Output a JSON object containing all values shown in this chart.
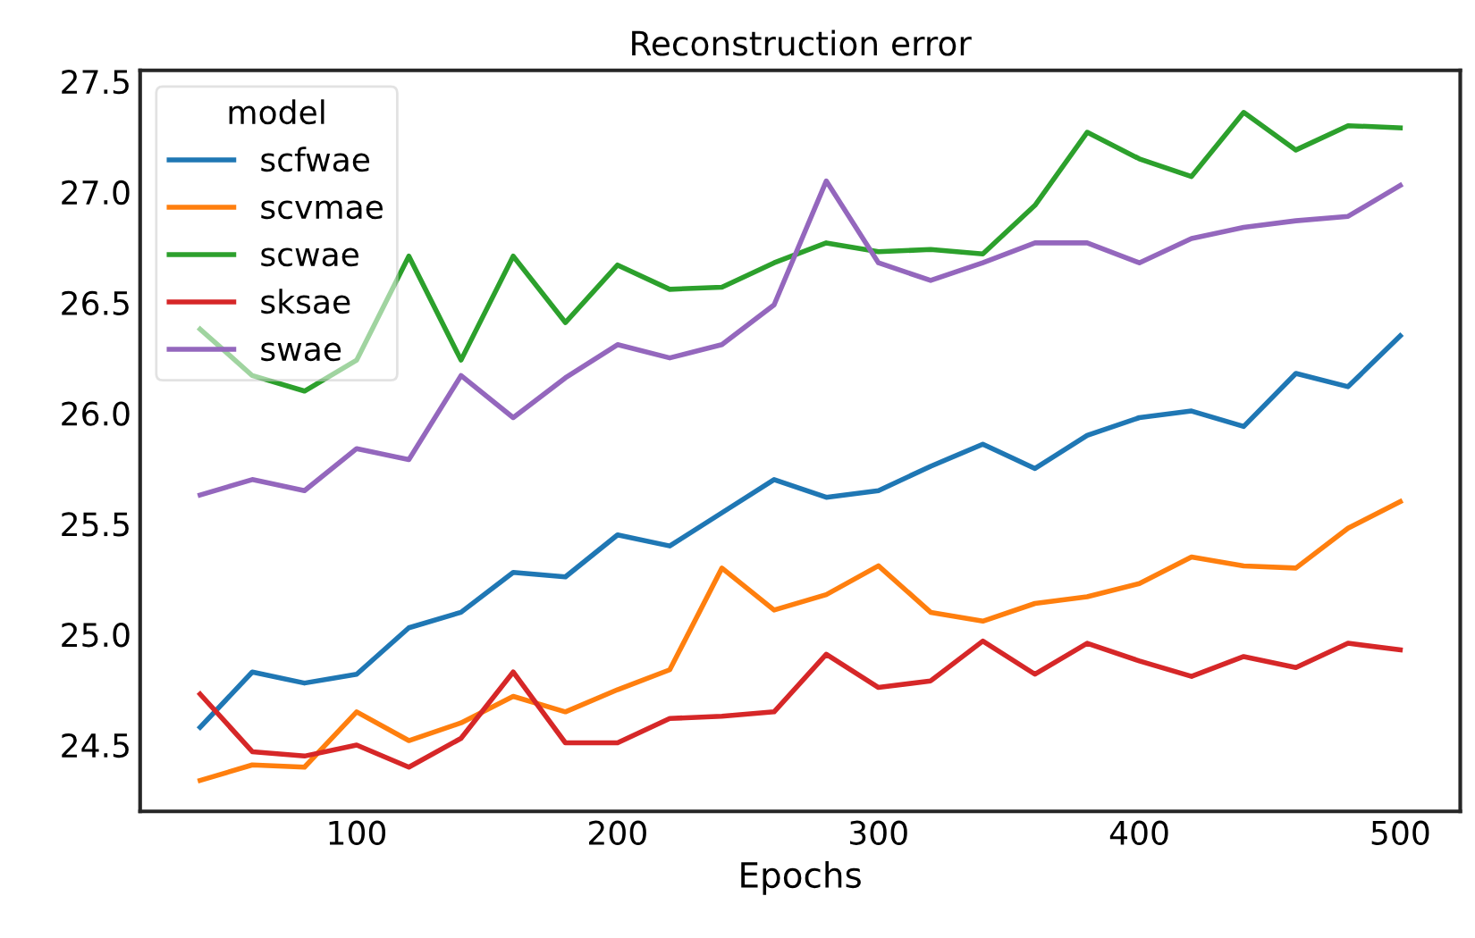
{
  "chart_data": {
    "type": "line",
    "title": "Reconstruction error",
    "xlabel": "Epochs",
    "legend_title": "model",
    "legend": "top left",
    "grid": false,
    "x": [
      40,
      60,
      80,
      100,
      120,
      140,
      160,
      180,
      200,
      220,
      240,
      260,
      280,
      300,
      320,
      340,
      360,
      380,
      400,
      420,
      440,
      460,
      480,
      500
    ],
    "xlim": [
      17,
      523
    ],
    "xticks": [
      100,
      200,
      300,
      400,
      500
    ],
    "ylim": [
      24.2,
      27.55
    ],
    "yticks": [
      24.5,
      {
        "value": 25,
        "label": "25.0"
      },
      25.5,
      {
        "value": 26,
        "label": "26.0"
      },
      26.5,
      {
        "value": 27,
        "label": "27.0"
      },
      27.5
    ],
    "series": [
      {
        "name": "scfwae",
        "color": "#1f77b4",
        "values": [
          24.58,
          24.83,
          24.78,
          24.82,
          25.03,
          25.1,
          25.28,
          25.26,
          25.45,
          25.4,
          25.55,
          25.7,
          25.62,
          25.65,
          25.76,
          25.86,
          25.75,
          25.9,
          25.98,
          26.01,
          25.94,
          26.18,
          26.12,
          26.35
        ]
      },
      {
        "name": "scvmae",
        "color": "#ff7f0e",
        "values": [
          24.34,
          24.41,
          24.4,
          24.65,
          24.52,
          24.6,
          24.72,
          24.65,
          24.75,
          24.84,
          25.3,
          25.11,
          25.18,
          25.31,
          25.1,
          25.06,
          25.14,
          25.17,
          25.23,
          25.35,
          25.31,
          25.3,
          25.48,
          25.6
        ]
      },
      {
        "name": "scwae",
        "color": "#2ca02c",
        "values": [
          26.38,
          26.17,
          26.1,
          26.24,
          26.71,
          26.24,
          26.71,
          26.41,
          26.67,
          26.56,
          26.57,
          26.68,
          26.77,
          26.73,
          26.74,
          26.72,
          26.94,
          27.27,
          27.15,
          27.07,
          27.36,
          27.19,
          27.3,
          27.29
        ]
      },
      {
        "name": "sksae",
        "color": "#d62728",
        "values": [
          24.73,
          24.47,
          24.45,
          24.5,
          24.4,
          24.53,
          24.83,
          24.51,
          24.51,
          24.62,
          24.63,
          24.65,
          24.91,
          24.76,
          24.79,
          24.97,
          24.82,
          24.96,
          24.88,
          24.81,
          24.9,
          24.85,
          24.96,
          24.93
        ]
      },
      {
        "name": "swae",
        "color": "#9467bd",
        "values": [
          25.63,
          25.7,
          25.65,
          25.84,
          25.79,
          26.17,
          25.98,
          26.16,
          26.31,
          26.25,
          26.31,
          26.49,
          27.05,
          26.68,
          26.6,
          26.68,
          26.77,
          26.77,
          26.68,
          26.79,
          26.84,
          26.87,
          26.89,
          27.03
        ]
      }
    ]
  }
}
